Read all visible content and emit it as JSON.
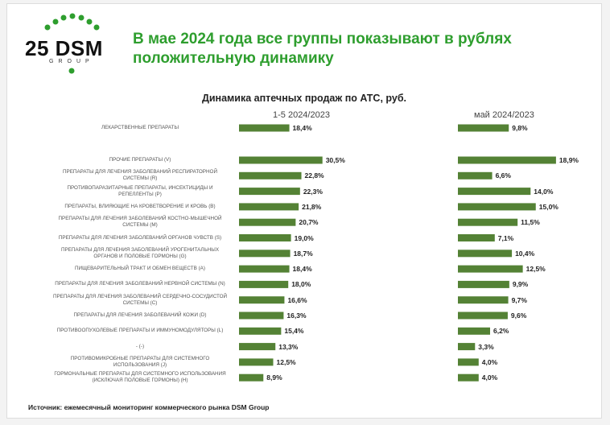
{
  "logo": {
    "text": "25 DSM",
    "subtext": "GROUP"
  },
  "chart_data": {
    "type": "bar",
    "orientation": "horizontal",
    "title": "В мае 2024 года все группы показывают в рублях положительную динамику",
    "subtitle": "Динамика аптечных продаж по АТС, руб.",
    "categories": [
      "ЛЕКАРСТВЕННЫЕ ПРЕПАРАТЫ",
      "ПРОЧИЕ ПРЕПАРАТЫ (V)",
      "ПРЕПАРАТЫ ДЛЯ ЛЕЧЕНИЯ ЗАБОЛЕВАНИЙ РЕСПИРАТОРНОЙ СИСТЕМЫ (R)",
      "ПРОТИВОПАРАЗИТАРНЫЕ ПРЕПАРАТЫ, ИНСЕКТИЦИДЫ И РЕПЕЛЛЕНТЫ (P)",
      "ПРЕПАРАТЫ, ВЛИЯЮЩИЕ НА КРОВЕТВОРЕНИЕ И КРОВЬ (B)",
      "ПРЕПАРАТЫ ДЛЯ ЛЕЧЕНИЯ ЗАБОЛЕВАНИЙ КОСТНО-МЫШЕЧНОЙ СИСТЕМЫ (M)",
      "ПРЕПАРАТЫ ДЛЯ ЛЕЧЕНИЯ ЗАБОЛЕВАНИЙ ОРГАНОВ ЧУВСТВ (S)",
      "ПРЕПАРАТЫ ДЛЯ ЛЕЧЕНИЯ ЗАБОЛЕВАНИЙ УРОГЕНИТАЛЬНЫХ ОРГАНОВ И ПОЛОВЫЕ ГОРМОНЫ (G)",
      "ПИЩЕВАРИТЕЛЬНЫЙ ТРАКТ И ОБМЕН ВЕЩЕСТВ (A)",
      "ПРЕПАРАТЫ ДЛЯ ЛЕЧЕНИЯ ЗАБОЛЕВАНИЙ НЕРВНОЙ СИСТЕМЫ (N)",
      "ПРЕПАРАТЫ ДЛЯ ЛЕЧЕНИЯ ЗАБОЛЕВАНИЙ СЕРДЕЧНО-СОСУДИСТОЙ СИСТЕМЫ (C)",
      "ПРЕПАРАТЫ ДЛЯ ЛЕЧЕНИЯ ЗАБОЛЕВАНИЙ КОЖИ (D)",
      "ПРОТИВООПУХОЛЕВЫЕ ПРЕПАРАТЫ И ИММУНОМОДУЛЯТОРЫ (L)",
      "- (-)",
      "ПРОТИВОМИКРОБНЫЕ ПРЕПАРАТЫ ДЛЯ СИСТЕМНОГО ИСПОЛЬЗОВАНИЯ (J)",
      "ГОРМОНАЛЬНЫЕ ПРЕПАРАТЫ ДЛЯ СИСТЕМНОГО ИСПОЛЬЗОВАНИЯ (ИСКЛЮЧАЯ ПОЛОВЫЕ ГОРМОНЫ) (H)"
    ],
    "series": [
      {
        "name": "1-5 2024/2023",
        "color": "#548235",
        "xlim": [
          0,
          35
        ],
        "values": [
          18.4,
          30.5,
          22.8,
          22.3,
          21.8,
          20.7,
          19.0,
          18.7,
          18.4,
          18.0,
          16.6,
          16.3,
          15.4,
          13.3,
          12.5,
          8.9
        ],
        "value_labels": [
          "18,4%",
          "30,5%",
          "22,8%",
          "22,3%",
          "21,8%",
          "20,7%",
          "19,0%",
          "18,7%",
          "18,4%",
          "18,0%",
          "16,6%",
          "16,3%",
          "15,4%",
          "13,3%",
          "12,5%",
          "8,9%"
        ]
      },
      {
        "name": "май 2024/2023",
        "color": "#548235",
        "xlim": [
          0,
          20
        ],
        "values": [
          9.8,
          18.9,
          6.6,
          14.0,
          15.0,
          11.5,
          7.1,
          10.4,
          12.5,
          9.9,
          9.7,
          9.6,
          6.2,
          3.3,
          4.0,
          4.0
        ],
        "value_labels": [
          "9,8%",
          "18,9%",
          "6,6%",
          "14,0%",
          "15,0%",
          "11,5%",
          "7,1%",
          "10,4%",
          "12,5%",
          "9,9%",
          "9,7%",
          "9,6%",
          "6,2%",
          "3,3%",
          "4,0%",
          "4,0%"
        ]
      }
    ],
    "source": "Источник: ежемесячный мониторинг коммерческого рынка DSM Group"
  }
}
